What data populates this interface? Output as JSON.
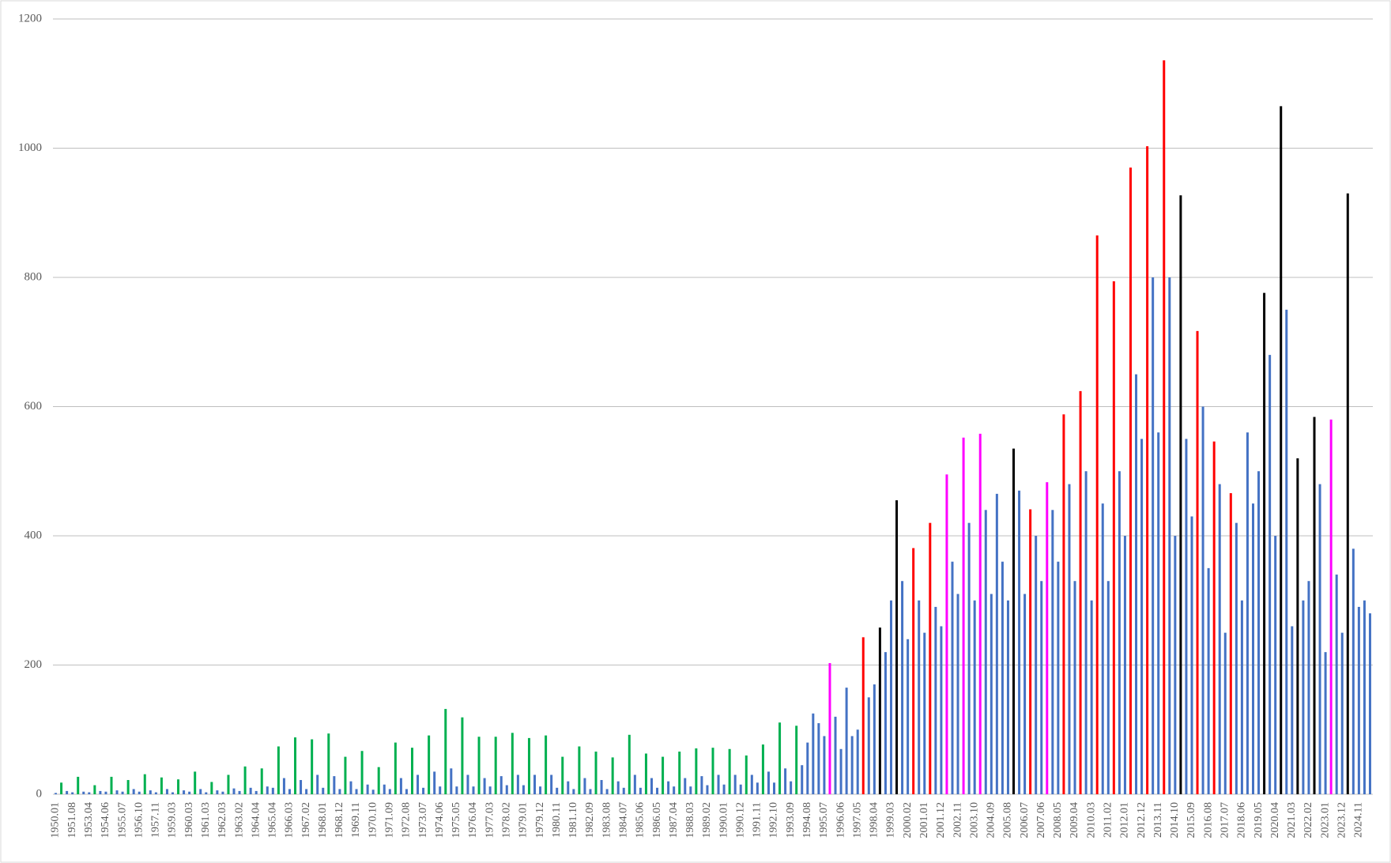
{
  "chart_data": {
    "type": "bar",
    "categories": [
      "1950.01",
      null,
      null,
      "1951.08",
      null,
      null,
      "1953.04",
      null,
      null,
      "1954.06",
      null,
      null,
      "1955.07",
      null,
      null,
      "1956.10",
      null,
      null,
      "1957.11",
      null,
      null,
      "1959.03",
      null,
      null,
      "1960.03",
      null,
      null,
      "1961.03",
      null,
      null,
      "1962.03",
      null,
      null,
      "1963.02",
      null,
      null,
      "1964.04",
      null,
      null,
      "1965.04",
      null,
      null,
      "1966.03",
      null,
      null,
      "1967.02",
      null,
      null,
      "1968.01",
      null,
      null,
      "1968.12",
      null,
      null,
      "1969.11",
      null,
      null,
      "1970.10",
      null,
      null,
      "1971.09",
      null,
      null,
      "1972.08",
      null,
      null,
      "1973.07",
      null,
      null,
      "1974.06",
      null,
      null,
      "1975.05",
      null,
      null,
      "1976.04",
      null,
      null,
      "1977.03",
      null,
      null,
      "1978.02",
      null,
      null,
      "1979.01",
      null,
      null,
      "1979.12",
      null,
      null,
      "1980.11",
      null,
      null,
      "1981.10",
      null,
      null,
      "1982.09",
      null,
      null,
      "1983.08",
      null,
      null,
      "1984.07",
      null,
      null,
      "1985.06",
      null,
      null,
      "1986.05",
      null,
      null,
      "1987.04",
      null,
      null,
      "1988.03",
      null,
      null,
      "1989.02",
      null,
      null,
      "1990.01",
      null,
      null,
      "1990.12",
      null,
      null,
      "1991.11",
      null,
      null,
      "1992.10",
      null,
      null,
      "1993.09",
      null,
      null,
      "1994.08",
      null,
      null,
      "1995.07",
      null,
      null,
      "1996.06",
      null,
      null,
      "1997.05",
      null,
      null,
      "1998.04",
      null,
      null,
      "1999.03",
      null,
      null,
      "2000.02",
      null,
      null,
      "2001.01",
      null,
      null,
      "2001.12",
      null,
      null,
      "2002.11",
      null,
      null,
      "2003.10",
      null,
      null,
      "2004.09",
      null,
      null,
      "2005.08",
      null,
      null,
      "2006.07",
      null,
      null,
      "2007.06",
      null,
      null,
      "2008.05",
      null,
      null,
      "2009.04",
      null,
      null,
      "2010.03",
      null,
      null,
      "2011.02",
      null,
      null,
      "2012.01",
      null,
      null,
      "2012.12",
      null,
      null,
      "2013.11",
      null,
      null,
      "2014.10",
      null,
      null,
      "2015.09",
      null,
      null,
      "2016.08",
      null,
      null,
      "2017.07",
      null,
      null,
      "2018.06",
      null,
      null,
      "2019.05",
      null,
      null,
      "2020.04",
      null,
      null,
      "2021.03",
      null,
      null,
      "2022.02",
      null,
      null,
      "2023.01",
      null,
      null,
      "2023.12",
      null,
      null,
      "2024.11",
      null,
      null
    ],
    "values": [
      2,
      18,
      5,
      3,
      27,
      4,
      3,
      14,
      5,
      4,
      27,
      6,
      4,
      22,
      8,
      4,
      31,
      6,
      3,
      26,
      8,
      3,
      23,
      6,
      4,
      35,
      8,
      3,
      19,
      6,
      4,
      30,
      9,
      5,
      43,
      10,
      5,
      40,
      12,
      10,
      74,
      25,
      8,
      88,
      22,
      8,
      85,
      30,
      10,
      94,
      28,
      8,
      58,
      20,
      8,
      67,
      15,
      7,
      42,
      15,
      8,
      80,
      25,
      8,
      72,
      30,
      10,
      91,
      35,
      12,
      132,
      40,
      12,
      119,
      30,
      12,
      89,
      25,
      12,
      89,
      28,
      14,
      95,
      30,
      14,
      87,
      30,
      12,
      91,
      30,
      10,
      58,
      20,
      8,
      74,
      25,
      8,
      66,
      22,
      8,
      57,
      20,
      10,
      92,
      30,
      10,
      63,
      25,
      10,
      58,
      20,
      12,
      66,
      25,
      12,
      71,
      28,
      14,
      72,
      30,
      15,
      70,
      30,
      15,
      60,
      30,
      18,
      77,
      35,
      18,
      111,
      40,
      20,
      106,
      45,
      80,
      125,
      110,
      90,
      203,
      120,
      70,
      165,
      90,
      100,
      243,
      150,
      170,
      258,
      220,
      300,
      455,
      330,
      240,
      381,
      300,
      250,
      420,
      290,
      260,
      495,
      360,
      310,
      552,
      420,
      300,
      558,
      440,
      310,
      465,
      360,
      300,
      535,
      470,
      310,
      441,
      400,
      330,
      483,
      440,
      360,
      588,
      480,
      330,
      624,
      500,
      300,
      865,
      450,
      330,
      794,
      500,
      400,
      970,
      650,
      550,
      1003,
      800,
      560,
      1136,
      800,
      400,
      927,
      550,
      430,
      717,
      600,
      350,
      546,
      480,
      250,
      466,
      420,
      300,
      560,
      450,
      500,
      776,
      680,
      400,
      1065,
      750,
      260,
      520,
      300,
      330,
      584,
      480,
      220,
      580,
      340,
      250,
      930,
      380,
      290,
      300,
      280
    ],
    "colors": [
      "#4472c4",
      "#00b050",
      "#4472c4",
      "#4472c4",
      "#00b050",
      "#4472c4",
      "#4472c4",
      "#00b050",
      "#4472c4",
      "#4472c4",
      "#00b050",
      "#4472c4",
      "#4472c4",
      "#00b050",
      "#4472c4",
      "#4472c4",
      "#00b050",
      "#4472c4",
      "#4472c4",
      "#00b050",
      "#4472c4",
      "#4472c4",
      "#00b050",
      "#4472c4",
      "#4472c4",
      "#00b050",
      "#4472c4",
      "#4472c4",
      "#00b050",
      "#4472c4",
      "#4472c4",
      "#00b050",
      "#4472c4",
      "#4472c4",
      "#00b050",
      "#4472c4",
      "#4472c4",
      "#00b050",
      "#4472c4",
      "#4472c4",
      "#00b050",
      "#4472c4",
      "#4472c4",
      "#00b050",
      "#4472c4",
      "#4472c4",
      "#00b050",
      "#4472c4",
      "#4472c4",
      "#00b050",
      "#4472c4",
      "#4472c4",
      "#00b050",
      "#4472c4",
      "#4472c4",
      "#00b050",
      "#4472c4",
      "#4472c4",
      "#00b050",
      "#4472c4",
      "#4472c4",
      "#00b050",
      "#4472c4",
      "#4472c4",
      "#00b050",
      "#4472c4",
      "#4472c4",
      "#00b050",
      "#4472c4",
      "#4472c4",
      "#00b050",
      "#4472c4",
      "#4472c4",
      "#00b050",
      "#4472c4",
      "#4472c4",
      "#00b050",
      "#4472c4",
      "#4472c4",
      "#00b050",
      "#4472c4",
      "#4472c4",
      "#00b050",
      "#4472c4",
      "#4472c4",
      "#00b050",
      "#4472c4",
      "#4472c4",
      "#00b050",
      "#4472c4",
      "#4472c4",
      "#00b050",
      "#4472c4",
      "#4472c4",
      "#00b050",
      "#4472c4",
      "#4472c4",
      "#00b050",
      "#4472c4",
      "#4472c4",
      "#00b050",
      "#4472c4",
      "#4472c4",
      "#00b050",
      "#4472c4",
      "#4472c4",
      "#00b050",
      "#4472c4",
      "#4472c4",
      "#00b050",
      "#4472c4",
      "#4472c4",
      "#00b050",
      "#4472c4",
      "#4472c4",
      "#00b050",
      "#4472c4",
      "#4472c4",
      "#00b050",
      "#4472c4",
      "#4472c4",
      "#00b050",
      "#4472c4",
      "#4472c4",
      "#00b050",
      "#4472c4",
      "#4472c4",
      "#00b050",
      "#4472c4",
      "#4472c4",
      "#00b050",
      "#4472c4",
      "#4472c4",
      "#00b050",
      "#4472c4",
      "#4472c4",
      "#4472c4",
      "#4472c4",
      "#4472c4",
      "#ff00ff",
      "#4472c4",
      "#4472c4",
      "#4472c4",
      "#4472c4",
      "#4472c4",
      "#ff0000",
      "#4472c4",
      "#4472c4",
      "#000000",
      "#4472c4",
      "#4472c4",
      "#000000",
      "#4472c4",
      "#4472c4",
      "#ff0000",
      "#4472c4",
      "#4472c4",
      "#ff0000",
      "#4472c4",
      "#4472c4",
      "#ff00ff",
      "#4472c4",
      "#4472c4",
      "#ff00ff",
      "#4472c4",
      "#4472c4",
      "#ff00ff",
      "#4472c4",
      "#4472c4",
      "#4472c4",
      "#4472c4",
      "#4472c4",
      "#000000",
      "#4472c4",
      "#4472c4",
      "#ff0000",
      "#4472c4",
      "#4472c4",
      "#ff00ff",
      "#4472c4",
      "#4472c4",
      "#ff0000",
      "#4472c4",
      "#4472c4",
      "#ff0000",
      "#4472c4",
      "#4472c4",
      "#ff0000",
      "#4472c4",
      "#4472c4",
      "#ff0000",
      "#4472c4",
      "#4472c4",
      "#ff0000",
      "#4472c4",
      "#4472c4",
      "#ff0000",
      "#4472c4",
      "#4472c4",
      "#ff0000",
      "#4472c4",
      "#4472c4",
      "#000000",
      "#4472c4",
      "#4472c4",
      "#ff0000",
      "#4472c4",
      "#4472c4",
      "#ff0000",
      "#4472c4",
      "#4472c4",
      "#ff0000",
      "#4472c4",
      "#4472c4",
      "#4472c4",
      "#4472c4",
      "#4472c4",
      "#000000",
      "#4472c4",
      "#4472c4",
      "#000000",
      "#4472c4",
      "#4472c4",
      "#000000",
      "#4472c4",
      "#4472c4",
      "#000000",
      "#4472c4",
      "#4472c4",
      "#ff00ff",
      "#4472c4",
      "#4472c4",
      "#000000",
      "#4472c4",
      "#4472c4",
      "#4472c4",
      "#4472c4"
    ],
    "ylim": [
      0,
      1200
    ],
    "yticks": [
      0,
      200,
      400,
      600,
      800,
      1000,
      1200
    ],
    "grid": true
  }
}
